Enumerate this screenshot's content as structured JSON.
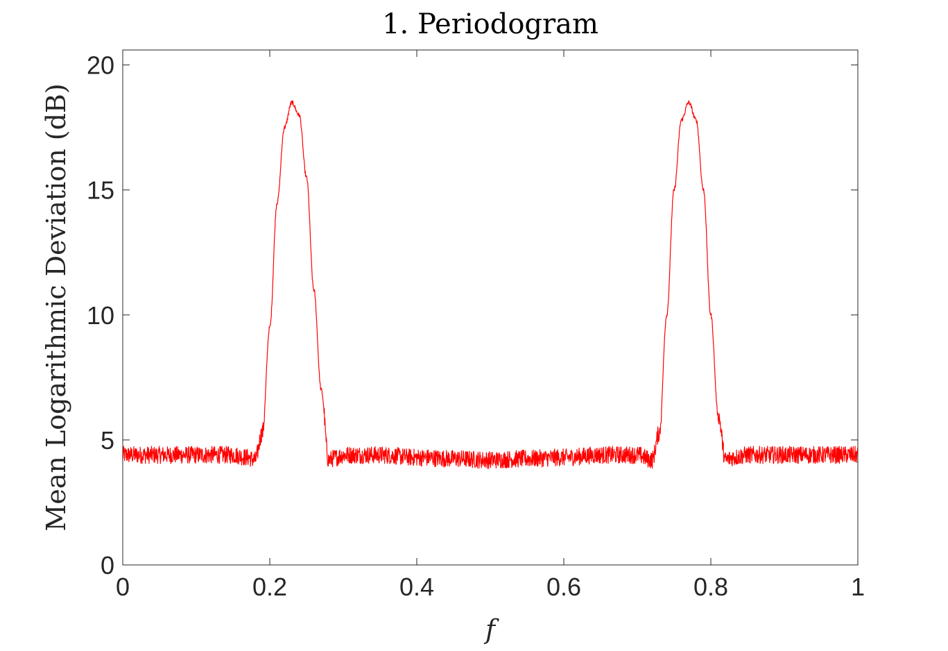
{
  "chart_data": {
    "type": "line",
    "title": "1. Periodogram",
    "xlabel": "f",
    "ylabel": "Mean Logarithmic Deviation (dB)",
    "xlim": [
      0,
      1
    ],
    "ylim": [
      0,
      20.6
    ],
    "xticks": [
      0,
      0.2,
      0.4,
      0.6,
      0.8,
      1
    ],
    "xtick_labels": [
      "0",
      "0.2",
      "0.4",
      "0.6",
      "0.8",
      "1"
    ],
    "yticks": [
      0,
      5,
      10,
      15,
      20
    ],
    "ytick_labels": [
      "0",
      "5",
      "10",
      "15",
      "20"
    ],
    "grid": false,
    "series": [
      {
        "color": "#ff0000",
        "x": [
          0,
          0.05,
          0.1,
          0.15,
          0.17,
          0.18,
          0.19,
          0.2,
          0.21,
          0.22,
          0.23,
          0.24,
          0.25,
          0.26,
          0.27,
          0.28,
          0.29,
          0.3,
          0.35,
          0.4,
          0.45,
          0.5,
          0.55,
          0.6,
          0.65,
          0.7,
          0.72,
          0.73,
          0.74,
          0.75,
          0.76,
          0.77,
          0.78,
          0.79,
          0.8,
          0.81,
          0.82,
          0.83,
          0.85,
          0.9,
          0.95,
          1
        ],
        "y": [
          4.4,
          4.4,
          4.4,
          4.4,
          4.3,
          4.2,
          5.3,
          9.5,
          14.5,
          17.5,
          18.5,
          18.0,
          15.5,
          11.0,
          7.0,
          4.2,
          4.3,
          4.4,
          4.4,
          4.3,
          4.25,
          4.2,
          4.25,
          4.3,
          4.4,
          4.4,
          4.2,
          5.3,
          10.0,
          15.0,
          17.8,
          18.5,
          17.8,
          15.0,
          10.0,
          6.0,
          4.2,
          4.3,
          4.4,
          4.4,
          4.4,
          4.4
        ],
        "noise_band_db": 0.35
      }
    ]
  }
}
